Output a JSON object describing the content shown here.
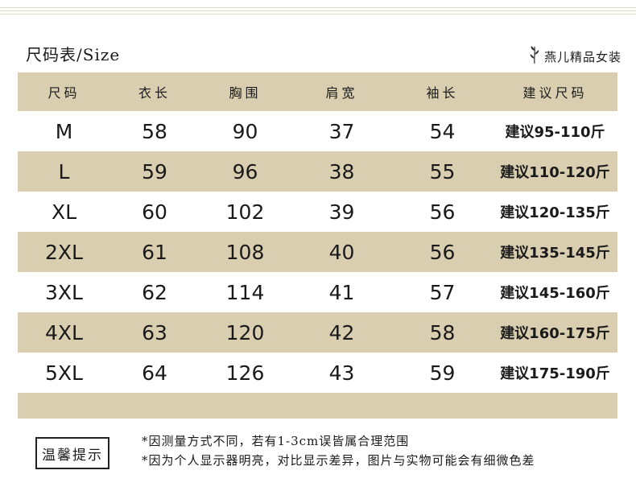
{
  "title": "尺码表/Size",
  "brand": {
    "name": "燕儿精品女装",
    "icon": "plant-sprig-icon"
  },
  "table": {
    "headers": [
      "尺码",
      "衣长",
      "胸围",
      "肩宽",
      "袖长",
      "建议尺码"
    ],
    "rows": [
      [
        "M",
        "58",
        "90",
        "37",
        "54",
        "建议95-110斤"
      ],
      [
        "L",
        "59",
        "96",
        "38",
        "55",
        "建议110-120斤"
      ],
      [
        "XL",
        "60",
        "102",
        "39",
        "56",
        "建议120-135斤"
      ],
      [
        "2XL",
        "61",
        "108",
        "40",
        "56",
        "建议135-145斤"
      ],
      [
        "3XL",
        "62",
        "114",
        "41",
        "57",
        "建议145-160斤"
      ],
      [
        "4XL",
        "63",
        "120",
        "42",
        "58",
        "建议160-175斤"
      ],
      [
        "5XL",
        "64",
        "126",
        "43",
        "59",
        "建议175-190斤"
      ]
    ]
  },
  "notice": {
    "label": "温馨提示",
    "lines": [
      "*因测量方式不同，若有1-3cm误皆属合理范围",
      "*因为个人显示器明亮，对比显示差异，图片与实物可能会有细微色差"
    ]
  },
  "colors": {
    "row_tan": "#d9cfb0",
    "top_line": "#e3dcc4"
  }
}
